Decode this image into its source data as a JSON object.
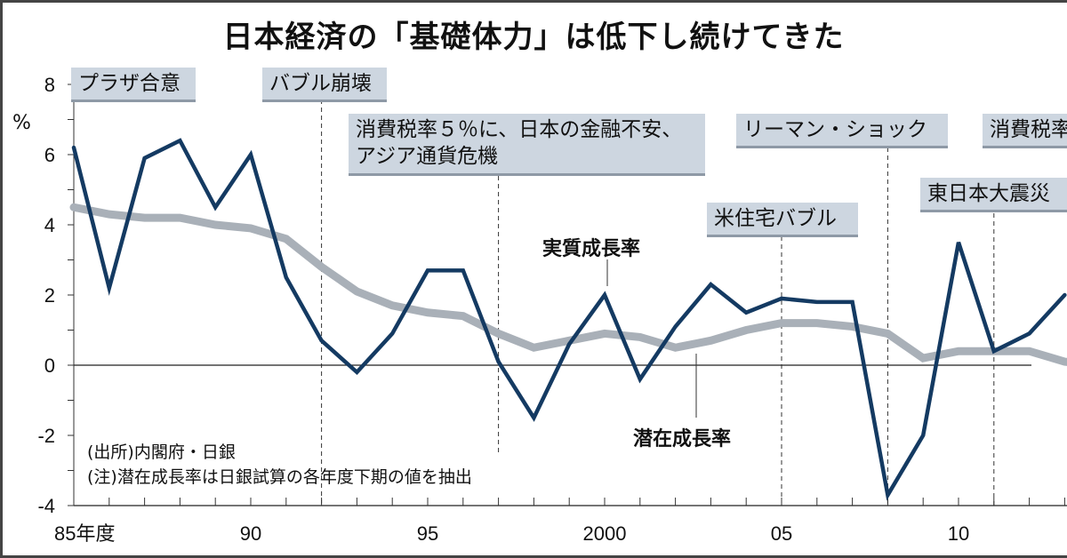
{
  "chart_data": {
    "type": "line",
    "title": "日本経済の「基礎体力」は低下し続けてきた",
    "ylabel": "%",
    "ylim": [
      -4,
      8
    ],
    "yticks": [
      "8",
      "6",
      "4",
      "2",
      "0",
      "-2",
      "-4"
    ],
    "xticks": [
      {
        "year": 1985,
        "label": "85年度"
      },
      {
        "year": 1990,
        "label": "90"
      },
      {
        "year": 1995,
        "label": "95"
      },
      {
        "year": 2000,
        "label": "2000"
      },
      {
        "year": 2005,
        "label": "05"
      },
      {
        "year": 2010,
        "label": "10"
      }
    ],
    "series": [
      {
        "name": "実質成長率",
        "color": "#143a62",
        "x": [
          1985,
          1986,
          1987,
          1988,
          1989,
          1990,
          1991,
          1992,
          1993,
          1994,
          1995,
          1996,
          1997,
          1998,
          1999,
          2000,
          2001,
          2002,
          2003,
          2004,
          2005,
          2006,
          2007,
          2008,
          2009,
          2010,
          2011,
          2012,
          2013
        ],
        "values": [
          6.2,
          2.2,
          5.9,
          6.4,
          4.5,
          6.0,
          2.5,
          0.7,
          -0.2,
          0.9,
          2.7,
          2.7,
          0.1,
          -1.5,
          0.6,
          2.0,
          -0.4,
          1.1,
          2.3,
          1.5,
          1.9,
          1.8,
          1.8,
          -3.7,
          -2.0,
          3.5,
          0.4,
          0.9,
          2.0
        ]
      },
      {
        "name": "潜在成長率",
        "color": "#a9b0b8",
        "x": [
          1985,
          1986,
          1987,
          1988,
          1989,
          1990,
          1991,
          1992,
          1993,
          1994,
          1995,
          1996,
          1997,
          1998,
          1999,
          2000,
          2001,
          2002,
          2003,
          2004,
          2005,
          2006,
          2007,
          2008,
          2009,
          2010,
          2011,
          2012,
          2013,
          2014
        ],
        "values": [
          4.5,
          4.3,
          4.2,
          4.2,
          4.0,
          3.9,
          3.6,
          2.8,
          2.1,
          1.7,
          1.5,
          1.4,
          0.9,
          0.5,
          0.7,
          0.9,
          0.8,
          0.5,
          0.7,
          1.0,
          1.2,
          1.2,
          1.1,
          0.9,
          0.2,
          0.4,
          0.4,
          0.4,
          0.1,
          0.0
        ]
      }
    ],
    "annotations": [
      {
        "year": 1985,
        "text": "プラザ合意"
      },
      {
        "year": 1992,
        "text": "バブル崩壊"
      },
      {
        "year": 1997,
        "text": "消費税率５％に、日本の金融不安、",
        "text2": "アジア通貨危機"
      },
      {
        "year": 2008,
        "text": "リーマン・ショック"
      },
      {
        "year": 2014,
        "text": "消費税率"
      },
      {
        "year": 2005,
        "text": "米住宅バブル"
      },
      {
        "year": 2011,
        "text": "東日本大震災"
      }
    ],
    "notes": [
      "(出所)内閣府・日銀",
      "(注)潜在成長率は日銀試算の各年度下期の値を抽出"
    ]
  }
}
